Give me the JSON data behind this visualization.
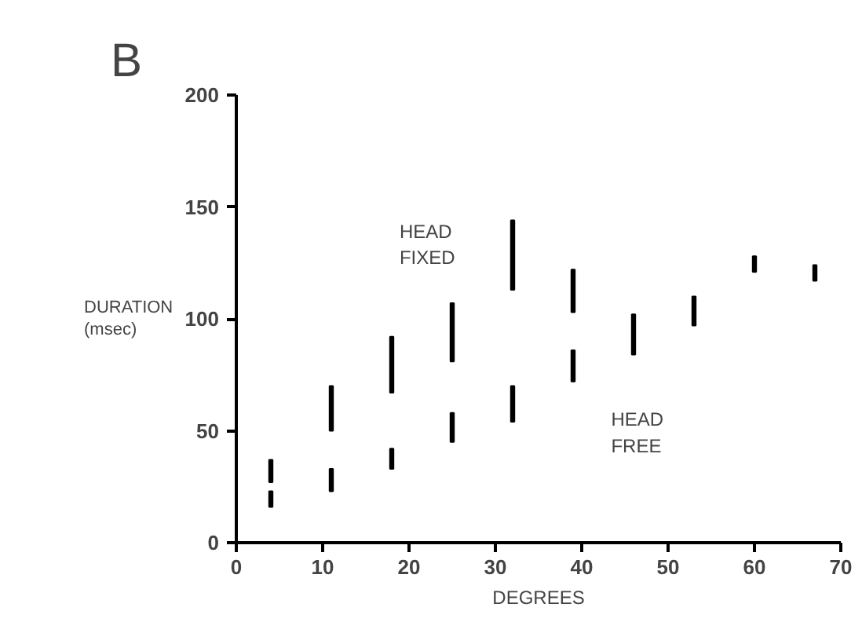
{
  "chart_data": {
    "type": "bar",
    "title": "B",
    "xlabel": "DEGREES",
    "ylabel": "DURATION\n(msec)",
    "series": [
      {
        "name": "HEAD FIXED",
        "color": "#000000",
        "x": [
          4,
          11,
          18,
          25,
          32,
          39
        ],
        "base": [
          27,
          50,
          67,
          81,
          113,
          103
        ],
        "values": [
          10,
          20,
          25,
          26,
          31,
          19
        ]
      },
      {
        "name": "HEAD FREE",
        "color": "#000000",
        "x": [
          4,
          11,
          18,
          25,
          32,
          39,
          46,
          53,
          60,
          67
        ],
        "base": [
          16,
          23,
          33,
          45,
          54,
          72,
          84,
          97,
          121,
          117
        ],
        "values": [
          7,
          10,
          9,
          13,
          16,
          14,
          18,
          13,
          7,
          7
        ]
      }
    ],
    "xlim": [
      0,
      70
    ],
    "ylim": [
      0,
      200
    ],
    "xticks": [
      0,
      10,
      20,
      30,
      40,
      50,
      60,
      70
    ],
    "yticks": [
      0,
      50,
      100,
      150,
      200
    ],
    "grid": false
  }
}
